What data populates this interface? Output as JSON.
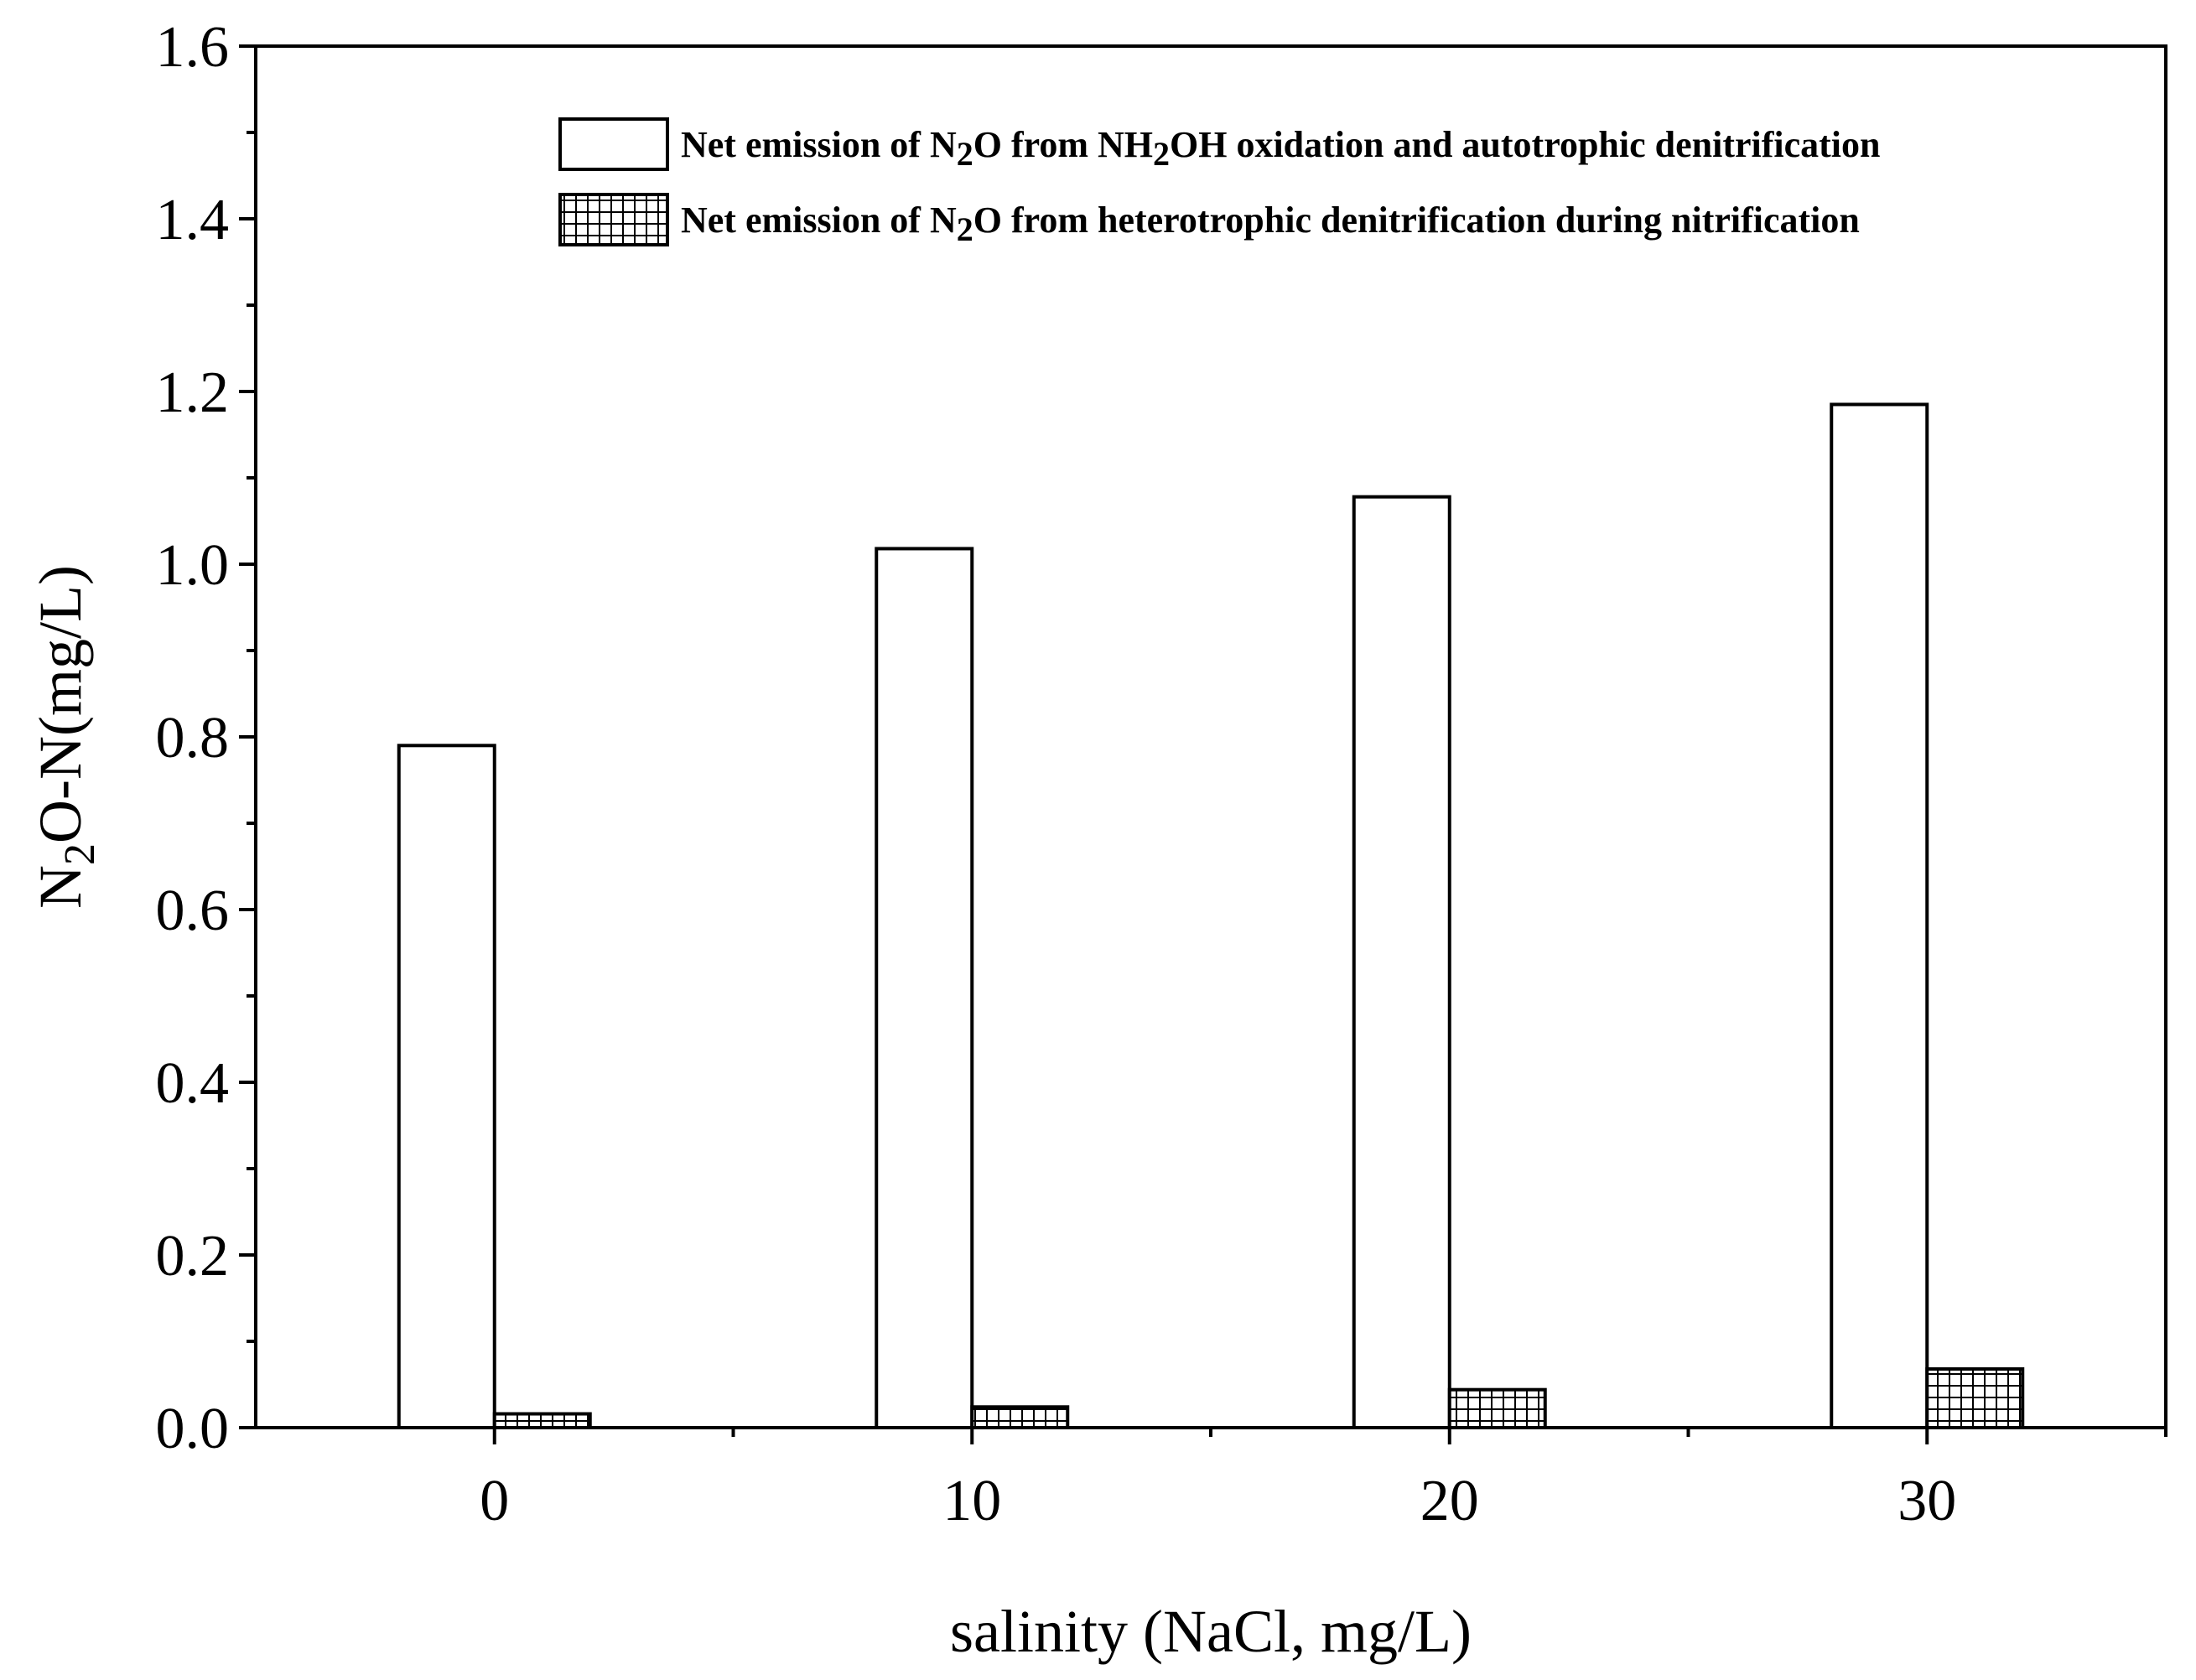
{
  "chart_data": {
    "type": "bar",
    "xlabel": "salinity (NaCl, mg/L)",
    "ylabel": "N2O-N(mg/L)",
    "ylabel_parts": [
      "N",
      "2",
      "O-N(mg/L)"
    ],
    "categories": [
      "0",
      "10",
      "20",
      "30"
    ],
    "x": [
      0,
      10,
      20,
      30
    ],
    "xlim": [
      -5,
      35
    ],
    "xticks_major": [
      0,
      10,
      20,
      30
    ],
    "xticks_minor": [
      5,
      15,
      25,
      35
    ],
    "ylim": [
      0,
      1.6
    ],
    "yticks": [
      "0.0",
      "0.2",
      "0.4",
      "0.6",
      "0.8",
      "1.0",
      "1.2",
      "1.4",
      "1.6"
    ],
    "grid": false,
    "legend_position": "top-right",
    "series": [
      {
        "name": "Net emission of N2O from NH2OH oxidation and autotrophic denitrification",
        "name_parts": [
          "Net emission of N",
          "2",
          "O from NH",
          "2",
          "OH oxidation and autotrophic denitrification"
        ],
        "fill": "white",
        "values": [
          0.79,
          1.018,
          1.078,
          1.185
        ]
      },
      {
        "name": "Net emission of N2O from heterotrophic denitrification during nitrification",
        "name_parts": [
          "Net emission of N",
          "2",
          "O from heterotrophic denitrification during nitrification"
        ],
        "fill": "grid-hatch",
        "values": [
          0.016,
          0.024,
          0.044,
          0.068
        ]
      }
    ]
  }
}
